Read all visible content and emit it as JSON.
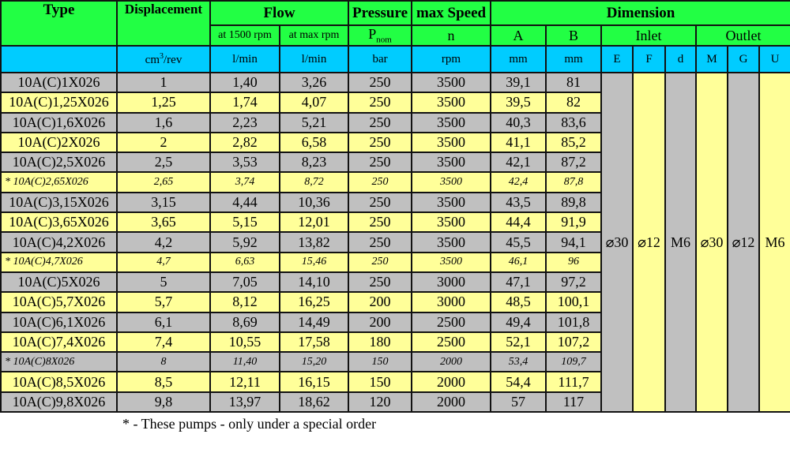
{
  "colors": {
    "header": "#22ff44",
    "units": "#00ccff",
    "row_gray": "#c0c0c0",
    "row_yellow": "#ffff99"
  },
  "header": {
    "type": "Type",
    "displacement": "Displacement",
    "flow": "Flow",
    "pressure": "Pressure",
    "max_speed": "max Speed",
    "dimension": "Dimension",
    "flow_1500": "at 1500 rpm",
    "flow_max": "at max rpm",
    "p": "P",
    "p_sub": "nom",
    "n": "n",
    "a": "A",
    "b": "B",
    "inlet": "Inlet",
    "outlet": "Outlet"
  },
  "units": {
    "disp": "cm",
    "disp_sup": "3",
    "disp_rest": "/rev",
    "flow1": "l/min",
    "flow2": "l/min",
    "pressure": "bar",
    "speed": "rpm",
    "a": "mm",
    "b": "mm",
    "e": "E",
    "f": "F",
    "d": "d",
    "m": "M",
    "g": "G",
    "u": "U"
  },
  "rows": [
    [
      "10A(C)1X026",
      "1",
      "1,40",
      "3,26",
      "250",
      "3500",
      "39,1",
      "81"
    ],
    [
      "10A(C)1,25X026",
      "1,25",
      "1,74",
      "4,07",
      "250",
      "3500",
      "39,5",
      "82"
    ],
    [
      "10A(C)1,6X026",
      "1,6",
      "2,23",
      "5,21",
      "250",
      "3500",
      "40,3",
      "83,6"
    ],
    [
      "10A(C)2X026",
      "2",
      "2,82",
      "6,58",
      "250",
      "3500",
      "41,1",
      "85,2"
    ],
    [
      "10A(C)2,5X026",
      "2,5",
      "3,53",
      "8,23",
      "250",
      "3500",
      "42,1",
      "87,2"
    ],
    [
      "* 10A(C)2,65X026",
      "2,65",
      "3,74",
      "8,72",
      "250",
      "3500",
      "42,4",
      "87,8"
    ],
    [
      "10A(C)3,15X026",
      "3,15",
      "4,44",
      "10,36",
      "250",
      "3500",
      "43,5",
      "89,8"
    ],
    [
      "10A(C)3,65X026",
      "3,65",
      "5,15",
      "12,01",
      "250",
      "3500",
      "44,4",
      "91,9"
    ],
    [
      "10A(C)4,2X026",
      "4,2",
      "5,92",
      "13,82",
      "250",
      "3500",
      "45,5",
      "94,1"
    ],
    [
      "* 10A(C)4,7X026",
      "4,7",
      "6,63",
      "15,46",
      "250",
      "3500",
      "46,1",
      "96"
    ],
    [
      "10A(C)5X026",
      "5",
      "7,05",
      "14,10",
      "250",
      "3000",
      "47,1",
      "97,2"
    ],
    [
      "10A(C)5,7X026",
      "5,7",
      "8,12",
      "16,25",
      "200",
      "3000",
      "48,5",
      "100,1"
    ],
    [
      "10A(C)6,1X026",
      "6,1",
      "8,69",
      "14,49",
      "200",
      "2500",
      "49,4",
      "101,8"
    ],
    [
      "10A(C)7,4X026",
      "7,4",
      "10,55",
      "17,58",
      "180",
      "2500",
      "52,1",
      "107,2"
    ],
    [
      "* 10A(C)8X026",
      "8",
      "11,40",
      "15,20",
      "150",
      "2000",
      "53,4",
      "109,7"
    ],
    [
      "10A(C)8,5X026",
      "8,5",
      "12,11",
      "16,15",
      "150",
      "2000",
      "54,4",
      "111,7"
    ],
    [
      "10A(C)9,8X026",
      "9,8",
      "13,97",
      "18,62",
      "120",
      "2000",
      "57",
      "117"
    ]
  ],
  "special_rows": [
    5,
    9,
    14
  ],
  "dims": {
    "e": "⌀30",
    "f": "⌀12",
    "d": "M6",
    "m": "⌀30",
    "g": "⌀12",
    "u": "M6"
  },
  "footnote": "*  - These pumps - only under a special order"
}
